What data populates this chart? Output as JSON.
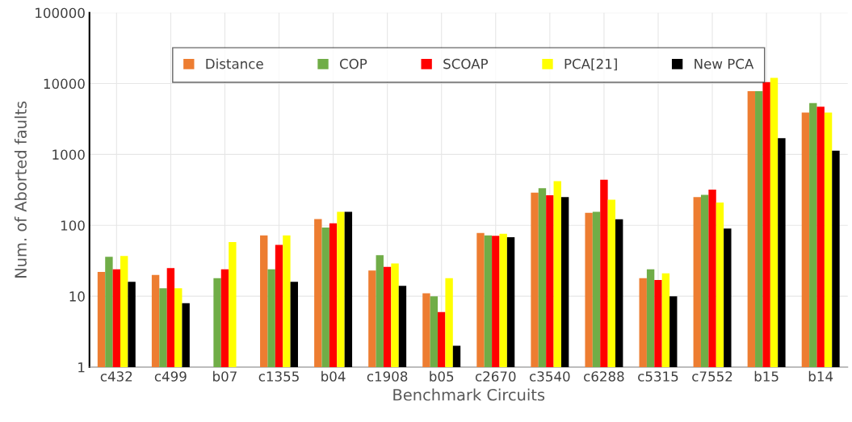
{
  "chart_data": {
    "type": "bar",
    "xlabel": "Benchmark Circuits",
    "ylabel": "Num. of Aborted faults",
    "categories": [
      "c432",
      "c499",
      "b07",
      "c1355",
      "b04",
      "c1908",
      "b05",
      "c2670",
      "c3540",
      "c6288",
      "c5315",
      "c7552",
      "b15",
      "b14"
    ],
    "series": [
      {
        "name": "Distance",
        "color": "#ed7d31",
        "values": [
          22,
          20,
          null,
          72,
          123,
          23,
          11,
          78,
          290,
          150,
          18,
          250,
          7800,
          3900
        ]
      },
      {
        "name": "COP",
        "color": "#70ad47",
        "values": [
          36,
          13,
          18,
          24,
          93,
          38,
          10,
          72,
          335,
          155,
          24,
          270,
          7800,
          5300
        ]
      },
      {
        "name": "SCOAP",
        "color": "#ff0000",
        "values": [
          24,
          25,
          24,
          53,
          107,
          26,
          6,
          71,
          265,
          440,
          17,
          320,
          10500,
          4700
        ]
      },
      {
        "name": "PCA[21]",
        "color": "#ffff00",
        "values": [
          37,
          13,
          58,
          72,
          155,
          29,
          18,
          76,
          420,
          230,
          21,
          210,
          12000,
          3900
        ]
      },
      {
        "name": "New PCA",
        "color": "#000000",
        "values": [
          16,
          8,
          null,
          16,
          155,
          14,
          2,
          68,
          250,
          122,
          10,
          90,
          1700,
          1130
        ]
      }
    ],
    "log": "y",
    "ylim": [
      1,
      100000
    ],
    "yticks": [
      1,
      10,
      100,
      1000,
      10000,
      100000
    ],
    "grid": true,
    "legend": "top"
  }
}
